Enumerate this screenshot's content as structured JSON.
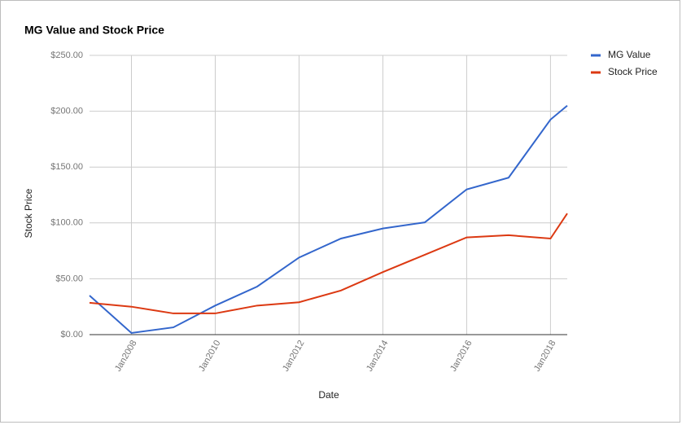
{
  "chart_data": {
    "type": "line",
    "title": "MG Value and Stock Price",
    "x_label": "Date",
    "y_label": "Stock Price",
    "x": [
      2007,
      2008,
      2009,
      2010,
      2011,
      2012,
      2013,
      2014,
      2015,
      2016,
      2017,
      2018,
      2018.4
    ],
    "series": [
      {
        "name": "MG Value",
        "color": "#3366cc",
        "values": [
          35,
          1.5,
          6.5,
          26,
          43,
          69,
          86,
          95,
          100.5,
          130,
          140.5,
          192.5,
          205
        ]
      },
      {
        "name": "Stock Price",
        "color": "#dc3912",
        "values": [
          28.5,
          25,
          19,
          19,
          26,
          29,
          39.5,
          56,
          71.5,
          87,
          89,
          86,
          108.5
        ]
      }
    ],
    "xlim": [
      2007,
      2018.4
    ],
    "xticks": [
      {
        "value": 2008,
        "label": "Jan2008"
      },
      {
        "value": 2010,
        "label": "Jan2010"
      },
      {
        "value": 2012,
        "label": "Jan2012"
      },
      {
        "value": 2014,
        "label": "Jan2014"
      },
      {
        "value": 2016,
        "label": "Jan2016"
      },
      {
        "value": 2018,
        "label": "Jan2018"
      }
    ],
    "ylim": [
      0,
      250
    ],
    "yticks": [
      {
        "value": 0,
        "label": "$0.00"
      },
      {
        "value": 50,
        "label": "$50.00"
      },
      {
        "value": 100,
        "label": "$100.00"
      },
      {
        "value": 150,
        "label": "$150.00"
      },
      {
        "value": 200,
        "label": "$200.00"
      },
      {
        "value": 250,
        "label": "$250.00"
      }
    ],
    "grid": true,
    "legend": "right"
  }
}
